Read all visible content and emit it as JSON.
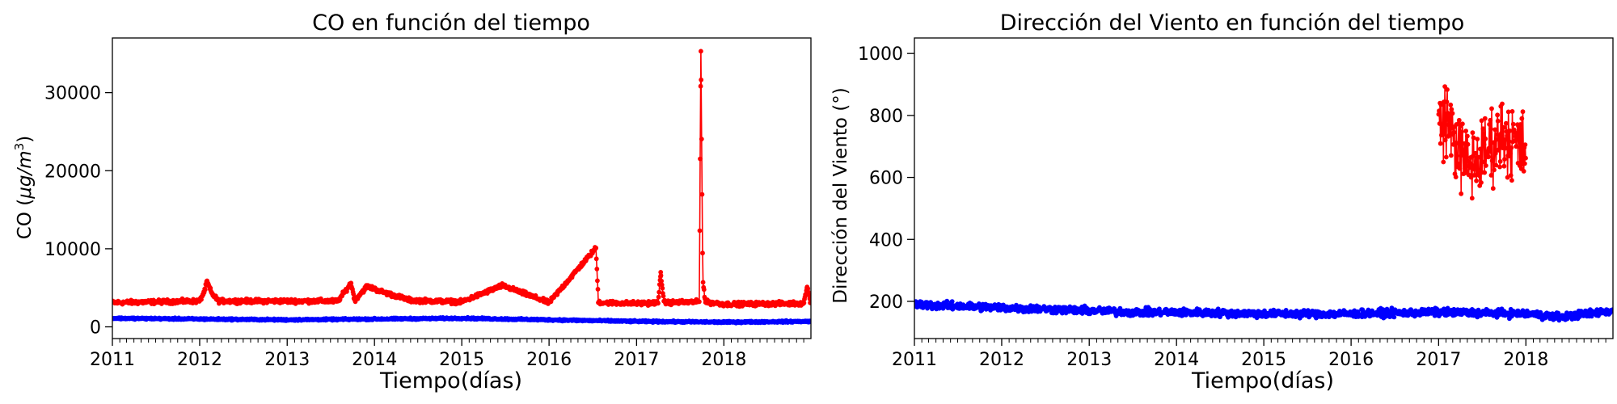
{
  "colors": {
    "upper_series": "#ff0000",
    "lower_series": "#0000ff",
    "axes": "#000000",
    "background": "#ffffff"
  },
  "chart_data": [
    {
      "type": "line",
      "title": "CO en función del tiempo",
      "xlabel": "Tiempo(días)",
      "ylabel": "CO (μg/m³)",
      "ylabel_parts": {
        "main": "CO (",
        "unit": "μg/m",
        "sup": "3",
        "close": ")"
      },
      "x_tick_labels": [
        "2011",
        "2012",
        "2013",
        "2014",
        "2015",
        "2016",
        "2017",
        "2018"
      ],
      "xlim": [
        "2011-01-01",
        "2018-12-31"
      ],
      "y_tick_values": [
        0,
        10000,
        20000,
        30000
      ],
      "y_tick_labels": [
        "0",
        "10000",
        "20000",
        "30000"
      ],
      "ylim": [
        -1500,
        37000
      ],
      "grid": false,
      "legend": "none",
      "series": [
        {
          "color": "#ff0000",
          "x": [
            "2011-01-01",
            "2012-01-01",
            "2012-01-20",
            "2012-02-01",
            "2012-02-20",
            "2012-03-20",
            "2013-01-01",
            "2013-08-01",
            "2013-09-25",
            "2013-10-10",
            "2013-12-01",
            "2014-02-01",
            "2014-06-01",
            "2015-01-01",
            "2015-06-20",
            "2016-01-01",
            "2016-07-15",
            "2016-07-25",
            "2016-08-05",
            "2017-01-01",
            "2017-04-01",
            "2017-04-12",
            "2017-04-25",
            "2017-09-20",
            "2017-09-27",
            "2017-10-05",
            "2017-10-15",
            "2018-01-01",
            "2018-12-01",
            "2018-12-15",
            "2018-12-31"
          ],
          "y": [
            3100,
            3300,
            4500,
            5800,
            4300,
            3300,
            3300,
            3300,
            5600,
            3400,
            5200,
            4500,
            3400,
            3200,
            5300,
            3100,
            10100,
            3300,
            3100,
            3000,
            3100,
            7000,
            3100,
            3200,
            35300,
            6000,
            3200,
            2900,
            3000,
            5100,
            3000
          ]
        },
        {
          "color": "#0000ff",
          "x": [
            "2011-01-01",
            "2012-01-01",
            "2013-01-01",
            "2014-01-01",
            "2015-01-01",
            "2016-01-01",
            "2017-01-01",
            "2018-01-01",
            "2018-12-31"
          ],
          "y": [
            1100,
            1000,
            900,
            1000,
            1100,
            900,
            700,
            600,
            700
          ]
        }
      ]
    },
    {
      "type": "line",
      "title": "Dirección del Viento en función del tiempo",
      "xlabel": "Tiempo(días)",
      "ylabel": "Dirección del Viento (°)",
      "x_tick_labels": [
        "2011",
        "2012",
        "2013",
        "2014",
        "2015",
        "2016",
        "2017",
        "2018"
      ],
      "xlim": [
        "2011-01-01",
        "2018-12-31"
      ],
      "y_tick_values": [
        200,
        400,
        600,
        800,
        1000
      ],
      "y_tick_labels": [
        "200",
        "400",
        "600",
        "800",
        "1000"
      ],
      "ylim": [
        80,
        1050
      ],
      "grid": false,
      "legend": "none",
      "series": [
        {
          "color": "#ff0000",
          "x": [
            "2017-01-01",
            "2017-02-01",
            "2017-03-01",
            "2017-04-01",
            "2017-05-01",
            "2017-06-01",
            "2017-07-01",
            "2017-08-01",
            "2017-09-01",
            "2017-10-01",
            "2017-11-01",
            "2017-12-01",
            "2017-12-31"
          ],
          "y": [
            760,
            800,
            740,
            680,
            640,
            650,
            660,
            700,
            720,
            740,
            720,
            700,
            680
          ],
          "y_range": [
            530,
            1000
          ]
        },
        {
          "color": "#0000ff",
          "x": [
            "2011-01-01",
            "2011-07-01",
            "2012-01-01",
            "2012-07-01",
            "2013-01-01",
            "2013-07-01",
            "2014-01-01",
            "2015-01-01",
            "2016-01-01",
            "2017-01-01",
            "2018-01-01",
            "2018-06-01",
            "2018-12-31"
          ],
          "y": [
            190,
            185,
            180,
            175,
            170,
            165,
            165,
            160,
            160,
            165,
            160,
            150,
            170
          ]
        }
      ]
    }
  ]
}
